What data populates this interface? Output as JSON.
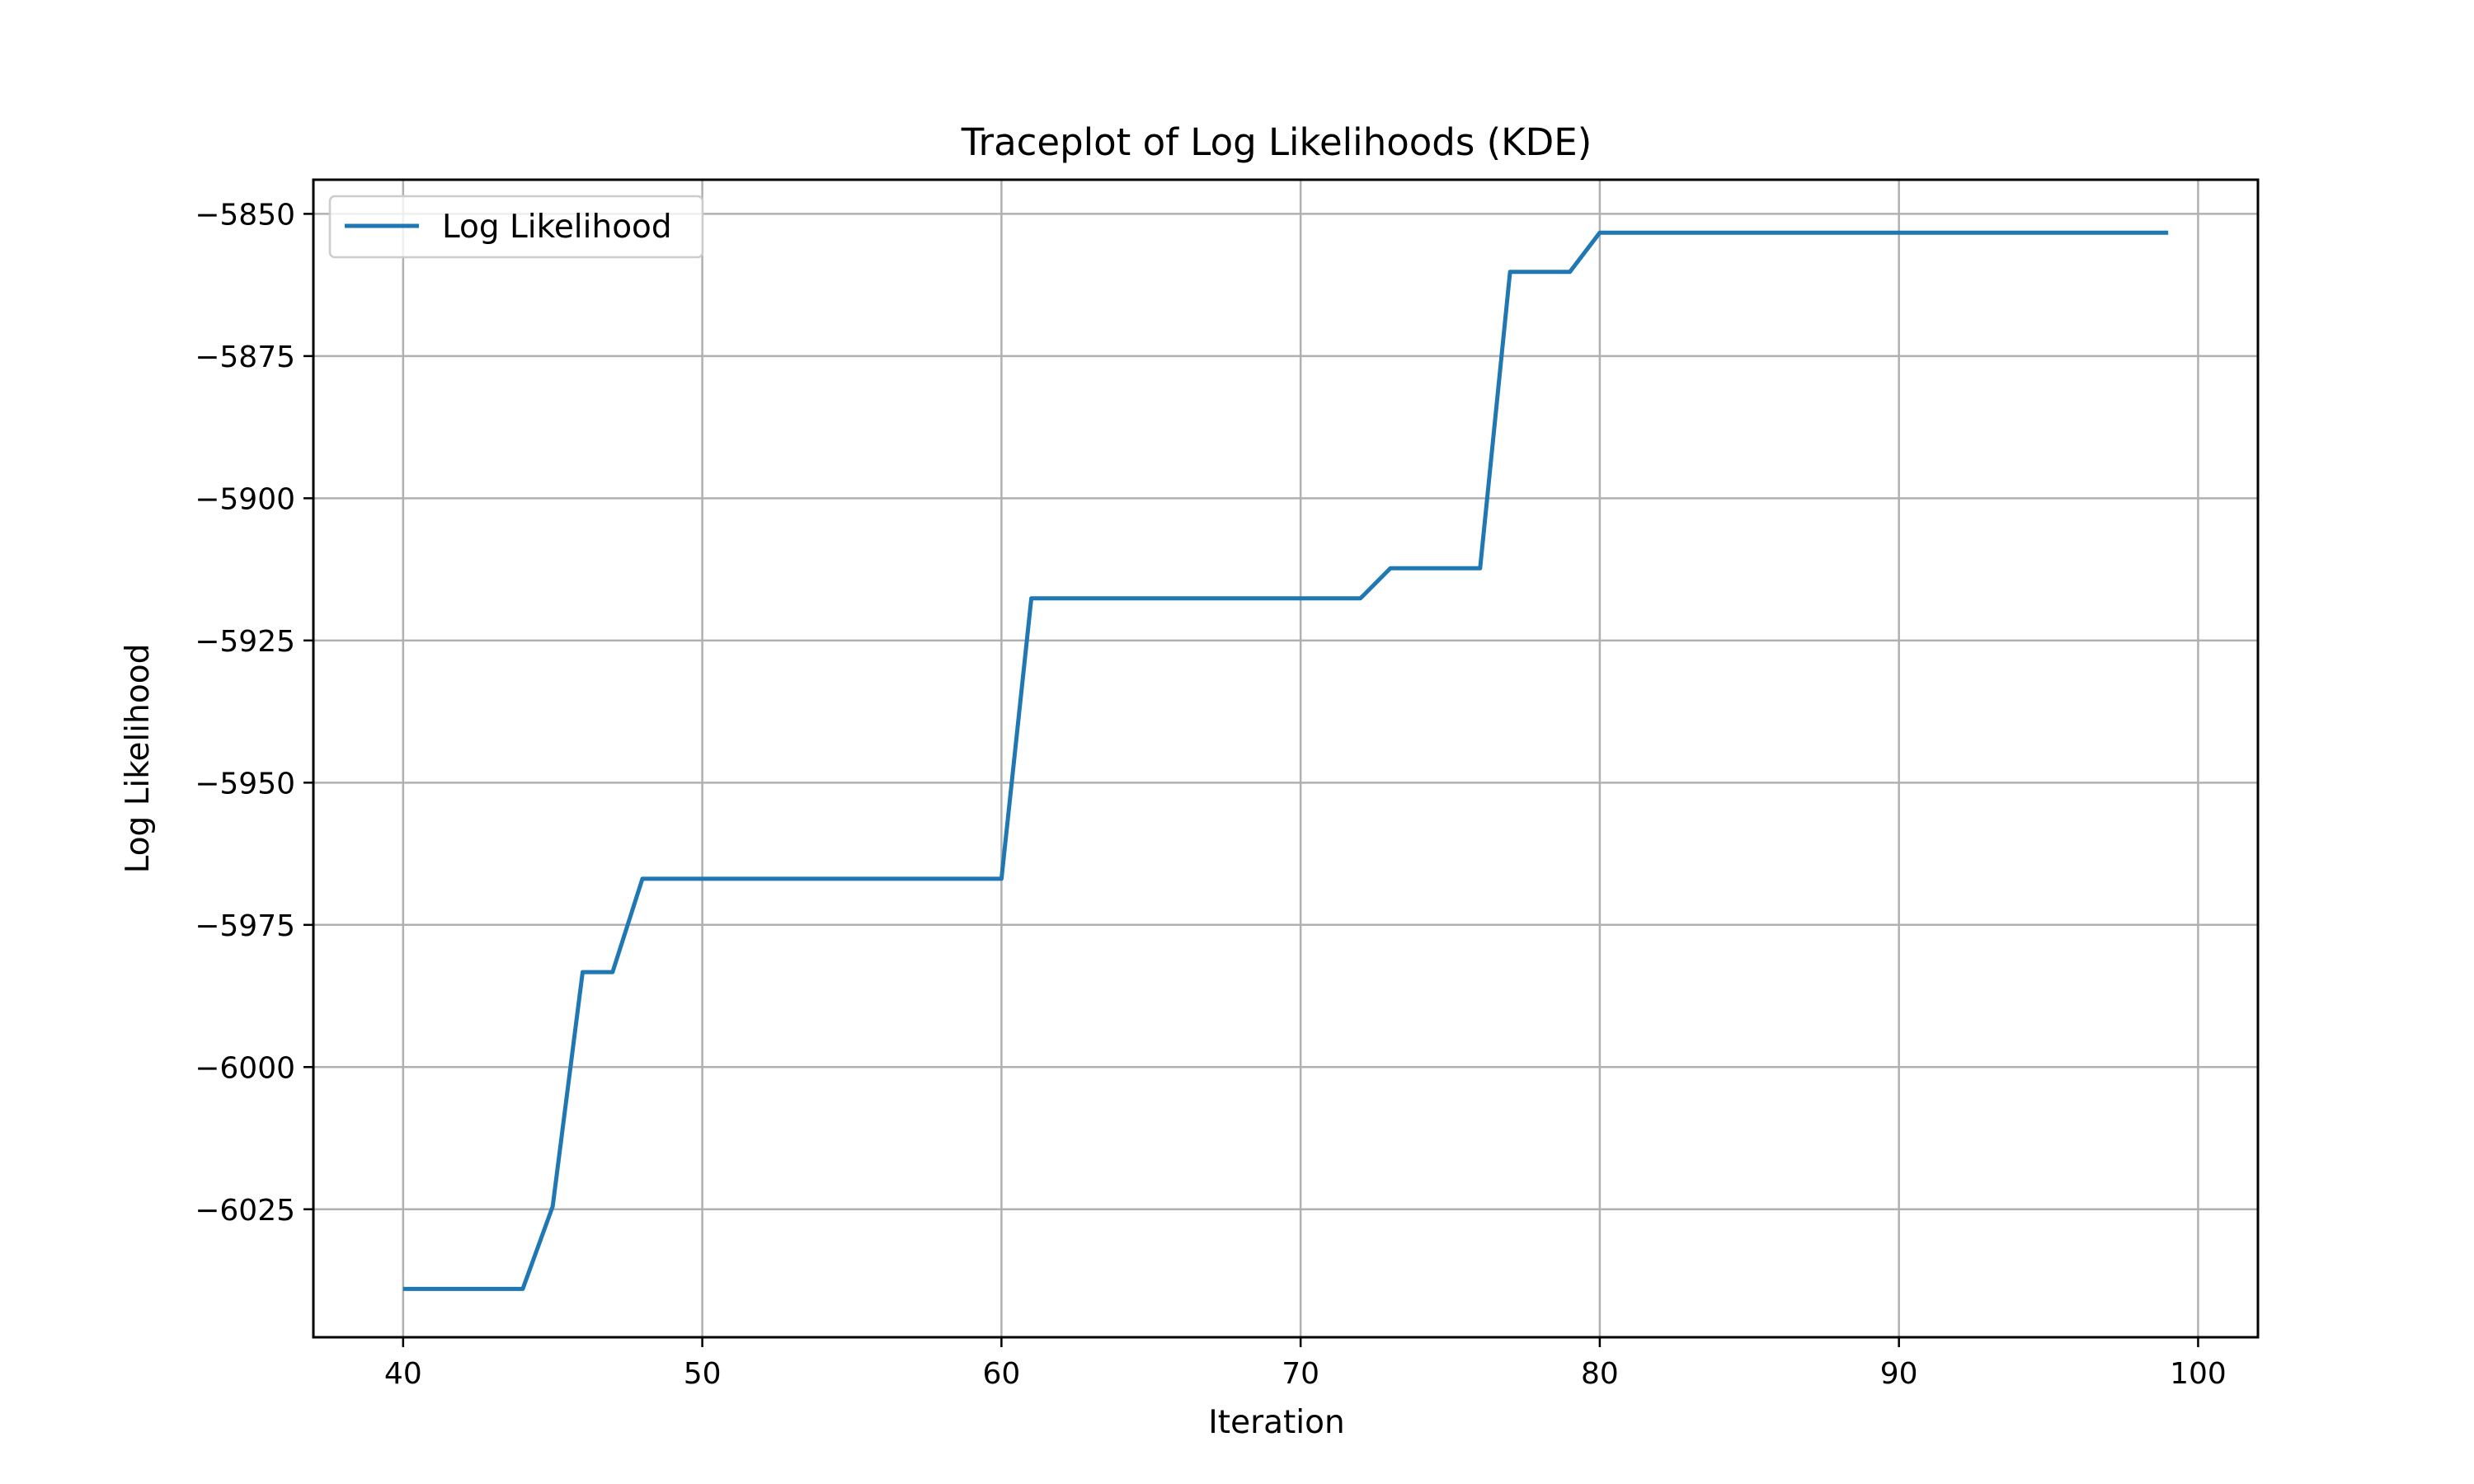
{
  "chart_data": {
    "type": "line",
    "title": "Traceplot of Log Likelihoods (KDE)",
    "xlabel": "Iteration",
    "ylabel": "Log Likelihood",
    "xlim": [
      37,
      102
    ],
    "ylim": [
      -6047.5,
      -5844
    ],
    "xticks": [
      40,
      50,
      60,
      70,
      80,
      90,
      100
    ],
    "yticks": [
      -6025,
      -6000,
      -5975,
      -5950,
      -5925,
      -5900,
      -5875,
      -5850
    ],
    "grid": true,
    "legend": {
      "position": "top-left",
      "entries": [
        "Log Likelihood"
      ]
    },
    "series": [
      {
        "name": "Log Likelihood",
        "color": "#1f77b4",
        "x": [
          40,
          41,
          42,
          43,
          44,
          45,
          46,
          47,
          48,
          49,
          50,
          51,
          52,
          53,
          54,
          55,
          56,
          57,
          58,
          59,
          60,
          61,
          62,
          63,
          64,
          65,
          66,
          67,
          68,
          69,
          70,
          71,
          72,
          73,
          74,
          75,
          76,
          77,
          78,
          79,
          80,
          81,
          82,
          83,
          84,
          85,
          86,
          87,
          88,
          89,
          90,
          91,
          92,
          93,
          94,
          95,
          96,
          97,
          98,
          99
        ],
        "y": [
          -6039,
          -6039,
          -6039,
          -6039,
          -6039,
          -6024.5,
          -5983.3,
          -5983.3,
          -5966.9,
          -5966.9,
          -5966.9,
          -5966.9,
          -5966.9,
          -5966.9,
          -5966.9,
          -5966.9,
          -5966.9,
          -5966.9,
          -5966.9,
          -5966.9,
          -5966.9,
          -5917.6,
          -5917.6,
          -5917.6,
          -5917.6,
          -5917.6,
          -5917.6,
          -5917.6,
          -5917.6,
          -5917.6,
          -5917.6,
          -5917.6,
          -5917.6,
          -5912.3,
          -5912.3,
          -5912.3,
          -5912.3,
          -5860.2,
          -5860.2,
          -5860.2,
          -5853.3,
          -5853.3,
          -5853.3,
          -5853.3,
          -5853.3,
          -5853.3,
          -5853.3,
          -5853.3,
          -5853.3,
          -5853.3,
          -5853.3,
          -5853.3,
          -5853.3,
          -5853.3,
          -5853.3,
          -5853.3,
          -5853.3,
          -5853.3,
          -5853.3,
          -5853.3
        ]
      }
    ]
  }
}
